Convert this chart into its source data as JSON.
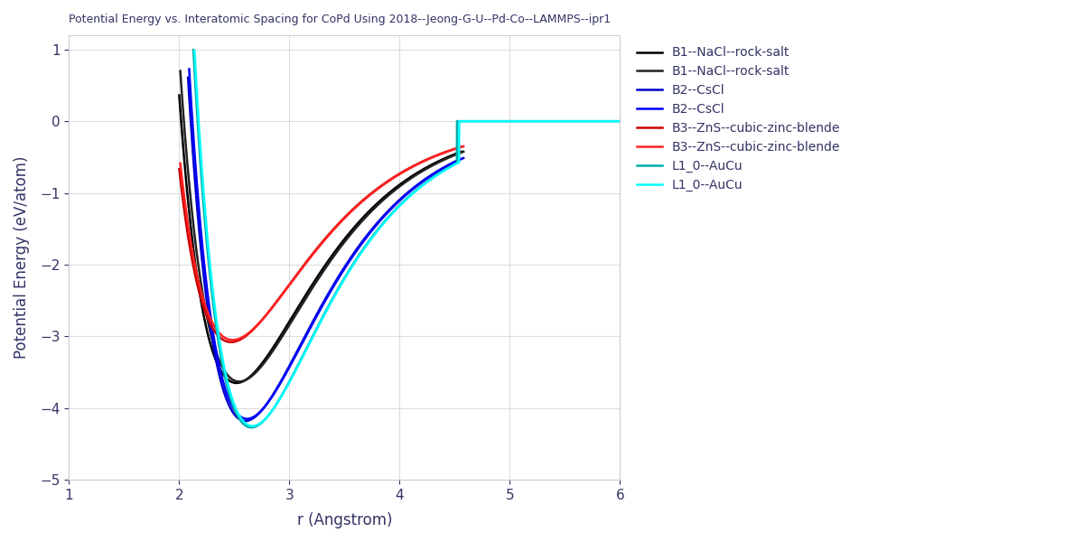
{
  "title": "Potential Energy vs. Interatomic Spacing for CoPd Using 2018--Jeong-G-U--Pd-Co--LAMMPS--ipr1",
  "xlabel": "r (Angstrom)",
  "ylabel": "Potential Energy (eV/atom)",
  "xlim": [
    1,
    6
  ],
  "ylim": [
    -5,
    1.2
  ],
  "yticks": [
    -5,
    -4,
    -3,
    -2,
    -1,
    0,
    1
  ],
  "xticks": [
    1,
    2,
    3,
    4,
    5,
    6
  ],
  "background_color": "#ffffff",
  "grid_color": "#dddddd",
  "title_fontsize": 9,
  "label_fontsize": 12,
  "tick_fontsize": 11,
  "text_color": "#333366",
  "spine_color": "#cccccc",
  "curves": [
    {
      "key": "B1_1",
      "color": "#000000",
      "lw": 1.8,
      "r_eq": 2.52,
      "E_min": -3.65,
      "a": 1.38,
      "r_start": 2.0,
      "r_cutoff": 4.56,
      "flat_after": false,
      "label": "B1--NaCl--rock-salt"
    },
    {
      "key": "B1_2",
      "color": "#222222",
      "lw": 1.8,
      "r_eq": 2.545,
      "E_min": -3.63,
      "a": 1.38,
      "r_start": 2.01,
      "r_cutoff": 4.58,
      "flat_after": false,
      "label": "B1--NaCl--rock-salt"
    },
    {
      "key": "B2_1",
      "color": "#0000cc",
      "lw": 1.8,
      "r_eq": 2.6,
      "E_min": -4.18,
      "a": 1.4,
      "r_start": 2.08,
      "r_cutoff": 4.55,
      "flat_after": false,
      "label": "B2--CsCl"
    },
    {
      "key": "B2_2",
      "color": "#0000ff",
      "lw": 1.8,
      "r_eq": 2.615,
      "E_min": -4.15,
      "a": 1.4,
      "r_start": 2.09,
      "r_cutoff": 4.58,
      "flat_after": false,
      "label": "B2--CsCl"
    },
    {
      "key": "B3_1",
      "color": "#cc0000",
      "lw": 1.8,
      "r_eq": 2.47,
      "E_min": -3.08,
      "a": 1.35,
      "r_start": 2.0,
      "r_cutoff": 4.56,
      "flat_after": false,
      "label": "B3--ZnS--cubic-zinc-blende"
    },
    {
      "key": "B3_2",
      "color": "#ff2222",
      "lw": 1.8,
      "r_eq": 2.485,
      "E_min": -3.05,
      "a": 1.35,
      "r_start": 2.01,
      "r_cutoff": 4.58,
      "flat_after": false,
      "label": "B3--ZnS--cubic-zinc-blende"
    },
    {
      "key": "L1_1",
      "color": "#00aaaa",
      "lw": 1.8,
      "r_eq": 2.655,
      "E_min": -4.27,
      "a": 1.42,
      "r_start": 2.1,
      "r_cutoff": 4.52,
      "flat_after": true,
      "label": "L1_0--AuCu"
    },
    {
      "key": "L1_2",
      "color": "#00ffff",
      "lw": 1.8,
      "r_eq": 2.665,
      "E_min": -4.25,
      "a": 1.42,
      "r_start": 2.11,
      "r_cutoff": 4.54,
      "flat_after": true,
      "label": "L1_0--AuCu"
    }
  ]
}
